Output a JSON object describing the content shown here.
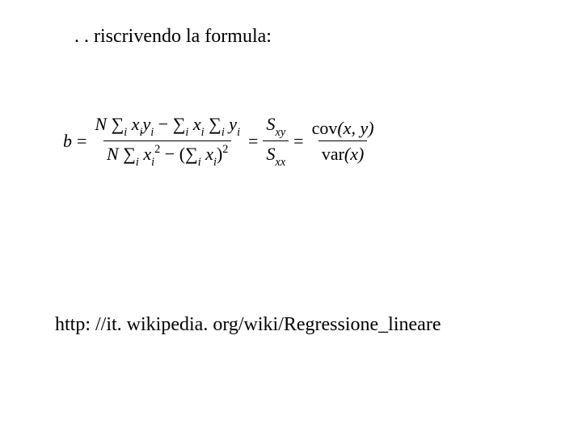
{
  "heading": ". . riscrivendo la formula:",
  "url": "http: //it. wikipedia. org/wiki/Regressione_lineare",
  "formula": {
    "lhs_var": "b",
    "eq": "=",
    "term1": {
      "num_N": "N",
      "num_sigma1": "∑",
      "num_sigma1_sub": "i",
      "num_x": "x",
      "num_x_sub": "i",
      "num_y": "y",
      "num_y_sub": "i",
      "num_minus": " − ",
      "num_sigma2": "∑",
      "num_sigma2_sub": "i",
      "num_x2": "x",
      "num_x2_sub": "i",
      "num_sigma3": "∑",
      "num_sigma3_sub": "i",
      "num_y2": "y",
      "num_y2_sub": "i",
      "den_N": "N",
      "den_sigma1": "∑",
      "den_sigma1_sub": "i",
      "den_x": "x",
      "den_x_sub": "i",
      "den_x_sup": "2",
      "den_minus": " − (",
      "den_sigma2": "∑",
      "den_sigma2_sub": "i",
      "den_x2": "x",
      "den_x2_sub": "i",
      "den_close": ")",
      "den_close_sup": "2"
    },
    "term2": {
      "num_S": "S",
      "num_sub": "xy",
      "den_S": "S",
      "den_sub": "xx"
    },
    "term3": {
      "num_cov": "cov",
      "num_args": "(x, y)",
      "den_var": "var",
      "den_args": "(x)"
    }
  }
}
